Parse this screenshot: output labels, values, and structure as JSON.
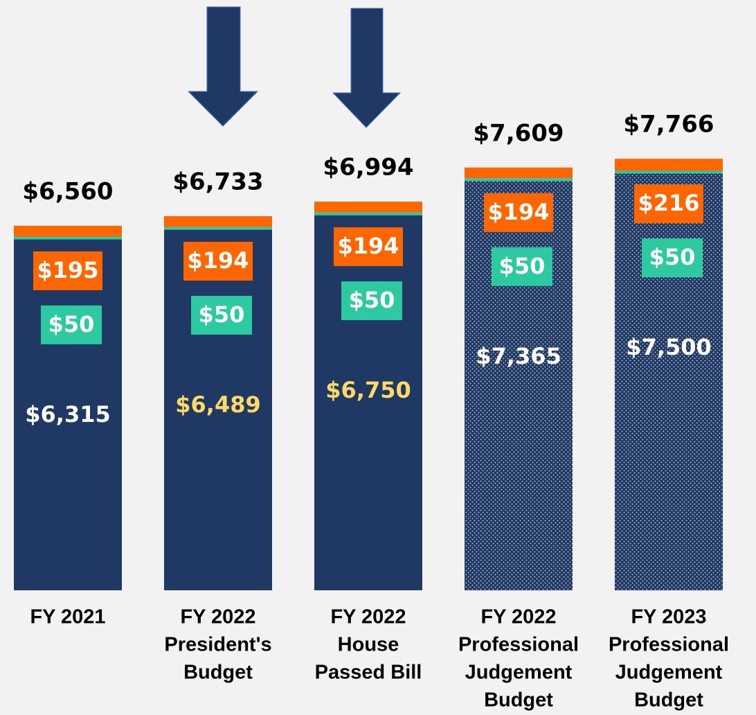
{
  "chart_data": {
    "type": "stacked-bar",
    "categories": [
      [
        "FY 2021"
      ],
      [
        "FY 2022",
        "President's",
        "Budget"
      ],
      [
        "FY 2022",
        "House",
        "Passed Bill"
      ],
      [
        "FY 2022",
        "Professional",
        "Judgement",
        "Budget"
      ],
      [
        "FY 2023",
        "Professional",
        "Judgement",
        "Budget"
      ]
    ],
    "patterned": [
      false,
      false,
      false,
      true,
      true
    ],
    "series": [
      {
        "color": "#1f3864",
        "values": [
          6315,
          6489,
          6750,
          7365,
          7500
        ],
        "value_labels": [
          "$6,315",
          "$6,489",
          "$6,750",
          "$7,365",
          "$7,500"
        ],
        "value_label_colors": [
          "#ffffff",
          "#ffd966",
          "#ffd966",
          "#ffffff",
          "#ffffff"
        ]
      },
      {
        "color": "#2dc9a0",
        "values": [
          50,
          50,
          50,
          50,
          50
        ],
        "value_labels": [
          "$50",
          "$50",
          "$50",
          "$50",
          "$50"
        ]
      },
      {
        "color": "#ff6600",
        "values": [
          195,
          194,
          194,
          194,
          216
        ],
        "value_labels": [
          "$195",
          "$194",
          "$194",
          "$194",
          "$216"
        ]
      }
    ],
    "totals": [
      6560,
      6733,
      6994,
      7609,
      7766
    ],
    "total_labels": [
      "$6,560",
      "$6,733",
      "$6,994",
      "$7,609",
      "$7,766"
    ]
  }
}
